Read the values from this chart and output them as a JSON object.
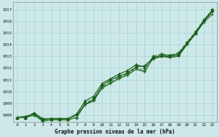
{
  "xlabel": "Graphe pression niveau de la mer (hPa)",
  "ylim": [
    1007.4,
    1017.6
  ],
  "xlim": [
    -0.5,
    23.5
  ],
  "yticks": [
    1008,
    1009,
    1010,
    1011,
    1012,
    1013,
    1014,
    1015,
    1016,
    1017
  ],
  "xticks": [
    0,
    1,
    2,
    3,
    4,
    5,
    6,
    7,
    8,
    9,
    10,
    11,
    12,
    13,
    14,
    15,
    16,
    17,
    18,
    19,
    20,
    21,
    22,
    23
  ],
  "bg_color": "#cce8e8",
  "grid_color": "#aad0d0",
  "line_dark": "#1a5c1a",
  "line_mid": "#2d7a2d",
  "series1": [
    1007.8,
    1007.9,
    1008.1,
    1007.6,
    1007.7,
    1007.7,
    1007.7,
    1008.0,
    1008.9,
    1009.3,
    1010.5,
    1011.0,
    1011.3,
    1011.6,
    1012.1,
    1012.2,
    1012.8,
    1013.0,
    1013.0,
    1013.1,
    1014.1,
    1015.0,
    1016.0,
    1016.8
  ],
  "series2": [
    1007.8,
    1007.8,
    1008.0,
    1007.5,
    1007.6,
    1007.6,
    1007.6,
    1007.8,
    1009.0,
    1009.4,
    1010.4,
    1010.8,
    1011.2,
    1011.5,
    1012.0,
    1011.8,
    1013.0,
    1013.2,
    1013.1,
    1013.3,
    1014.2,
    1015.1,
    1016.1,
    1017.0
  ],
  "series3": [
    1007.8,
    1007.8,
    1008.2,
    1007.7,
    1007.7,
    1007.7,
    1007.7,
    1008.1,
    1009.2,
    1009.6,
    1010.7,
    1011.1,
    1011.5,
    1011.8,
    1012.3,
    1012.1,
    1012.9,
    1013.1,
    1013.1,
    1013.2,
    1014.1,
    1015.0,
    1016.1,
    1016.9
  ],
  "series4": [
    1007.8,
    1007.8,
    1008.0,
    1007.5,
    1007.6,
    1007.6,
    1007.6,
    1007.8,
    1008.9,
    1009.2,
    1010.3,
    1010.7,
    1011.1,
    1011.4,
    1011.9,
    1011.7,
    1012.8,
    1013.0,
    1012.9,
    1013.0,
    1014.0,
    1014.9,
    1015.9,
    1016.6
  ]
}
